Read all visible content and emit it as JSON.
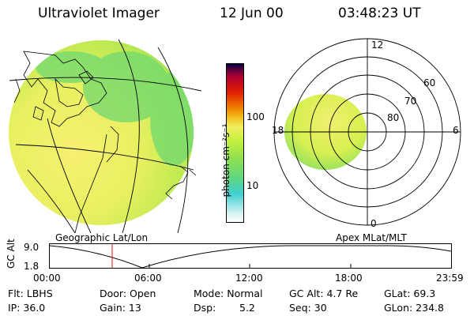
{
  "header": {
    "instrument": "Ultraviolet Imager",
    "date": "12 Jun 00",
    "time": "03:48:23 UT"
  },
  "colorbar": {
    "unit_label": "photon cm⁻²s⁻¹",
    "tick_100": "100",
    "tick_10": "10",
    "colors": [
      "#ffffff",
      "#c8f0f0",
      "#40d0d0",
      "#80e060",
      "#c0f040",
      "#f0f060",
      "#f0a000",
      "#e02000",
      "#a00040",
      "#400040"
    ]
  },
  "polar": {
    "label_top": "12",
    "label_bottom": "0",
    "label_left": "18",
    "label_right": "6",
    "lat_60": "60",
    "lat_70": "70",
    "lat_80": "80"
  },
  "captions": {
    "geo": "Geographic Lat/Lon",
    "apex": "Apex MLat/MLT"
  },
  "altplot": {
    "ylabel": "GC Alt",
    "ytick_top": "9.0",
    "ytick_bottom": "1.8",
    "xticks": [
      "00:00",
      "06:00",
      "12:00",
      "18:00",
      "23:59"
    ]
  },
  "info": {
    "flt": "Flt: LBHS",
    "ip": "IP: 36.0",
    "door": "Door: Open",
    "gain": "Gain: 13",
    "mode": "Mode: Normal",
    "dsp_label": "Dsp:",
    "dsp_value": "5.2",
    "gcalt": "GC Alt: 4.7 Re",
    "seq": "Seq: 30",
    "glat": "GLat: 69.3",
    "glon": "GLon: 234.8"
  }
}
